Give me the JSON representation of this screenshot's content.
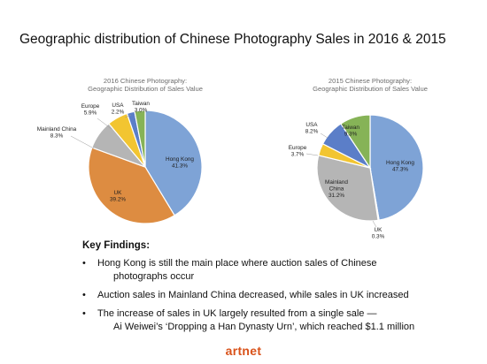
{
  "page": {
    "title": "Geographic distribution of Chinese Photography Sales in 2016 & 2015",
    "brand": "artnet"
  },
  "colors": {
    "hong_kong": "#7ea3d6",
    "uk": "#dd8c41",
    "mainland_china": "#b5b5b5",
    "europe": "#f2c531",
    "usa": "#5b7ec8",
    "taiwan": "#86b357"
  },
  "chart_data": [
    {
      "type": "pie",
      "title_lines": [
        "2016 Chinese Photography:",
        "Geographic Distribution of Sales Value"
      ],
      "slices": [
        {
          "label": "Hong Kong",
          "value": 41.3,
          "value_label": "41.3%",
          "color": "#7ea3d6"
        },
        {
          "label": "UK",
          "value": 39.2,
          "value_label": "39.2%",
          "color": "#dd8c41"
        },
        {
          "label": "Mainland China",
          "value": 8.3,
          "value_label": "8.3%",
          "color": "#b5b5b5"
        },
        {
          "label": "Europe",
          "value": 5.9,
          "value_label": "5.9%",
          "color": "#f2c531"
        },
        {
          "label": "USA",
          "value": 2.2,
          "value_label": "2.2%",
          "color": "#5b7ec8"
        },
        {
          "label": "Taiwan",
          "value": 3.0,
          "value_label": "3.0%",
          "color": "#86b357"
        }
      ]
    },
    {
      "type": "pie",
      "title_lines": [
        "2015 Chinese Photography:",
        "Geographic Distribution of Sales Value"
      ],
      "slices": [
        {
          "label": "Hong Kong",
          "value": 47.3,
          "value_label": "47.3%",
          "color": "#7ea3d6"
        },
        {
          "label": "UK",
          "value": 0.3,
          "value_label": "0.3%",
          "color": "#dd8c41"
        },
        {
          "label": "Mainland China",
          "value": 31.2,
          "value_label": "31.2%",
          "color": "#b5b5b5"
        },
        {
          "label": "Europe",
          "value": 3.7,
          "value_label": "3.7%",
          "color": "#f2c531"
        },
        {
          "label": "USA",
          "value": 8.2,
          "value_label": "8.2%",
          "color": "#5b7ec8"
        },
        {
          "label": "Taiwan",
          "value": 9.3,
          "value_label": "9.3%",
          "color": "#86b357"
        }
      ]
    }
  ],
  "findings": {
    "title": "Key Findings:",
    "items": [
      {
        "bullet": "•",
        "text": "Hong Kong is still the main place where auction sales of Chinese",
        "cont": "photographs occur"
      },
      {
        "bullet": "•",
        "text": "Auction sales in Mainland China decreased, while sales in UK increased"
      },
      {
        "bullet": "•",
        "text": "The increase of sales in UK largely resulted from a single sale —",
        "cont": "Ai Weiwei’s ‘Dropping a Han Dynasty Urn’, which reached $1.1 million"
      }
    ]
  }
}
